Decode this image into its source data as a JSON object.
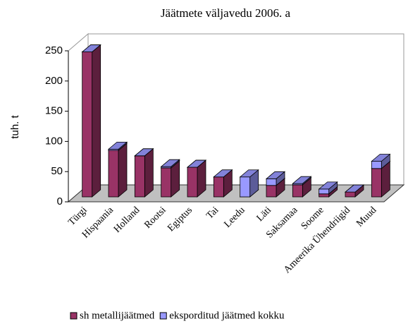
{
  "chart_data": {
    "type": "bar3d_stacked",
    "title": "Jäätmete väljavedu 2006. a",
    "y_label": "tuh. t",
    "categories": [
      "Türgi",
      "Hispaania",
      "Holland",
      "Rootsi",
      "Egiptus",
      "Tai",
      "Leedu",
      "Läti",
      "Saksamaa",
      "Soome",
      "Ameerika Ühendriigid",
      "Muud"
    ],
    "series": [
      {
        "name": "sh metallijäätmed",
        "color": "#993366",
        "values": [
          240,
          77,
          68,
          48,
          49,
          33,
          0,
          19,
          20,
          5,
          8,
          47
        ]
      },
      {
        "name": "eksporditud jäätmed kokku",
        "color": "#9999ff",
        "values": [
          0,
          2,
          0,
          2,
          0,
          0,
          33,
          11,
          2,
          8,
          0,
          12
        ]
      }
    ],
    "ylim": [
      0,
      250
    ],
    "yticks": [
      0,
      50,
      100,
      150,
      200,
      250
    ]
  }
}
